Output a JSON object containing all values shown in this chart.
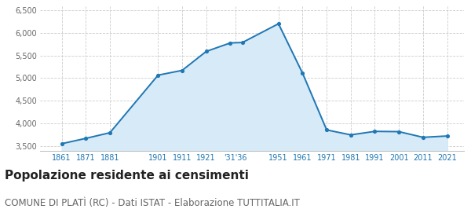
{
  "years": [
    1861,
    1871,
    1881,
    1901,
    1911,
    1921,
    1931,
    1936,
    1951,
    1961,
    1971,
    1981,
    1991,
    2001,
    2011,
    2021
  ],
  "population": [
    3554,
    3672,
    3796,
    5065,
    5170,
    5588,
    5775,
    5784,
    6198,
    5107,
    3858,
    3749,
    3826,
    3820,
    3695,
    3724
  ],
  "line_color": "#1f77b4",
  "fill_color": "#d6eaf8",
  "marker_color": "#1f77b4",
  "grid_color": "#cccccc",
  "bg_color": "#ffffff",
  "ylim": [
    3400,
    6600
  ],
  "yticks": [
    3500,
    4000,
    4500,
    5000,
    5500,
    6000,
    6500
  ],
  "ytick_labels": [
    "3,500",
    "4,000",
    "4,500",
    "5,000",
    "5,500",
    "6,000",
    "6,500"
  ],
  "xlim": [
    1852,
    2028
  ],
  "title": "Popolazione residente ai censimenti",
  "subtitle": "COMUNE DI PLATÌ (RC) - Dati ISTAT - Elaborazione TUTTITALIA.IT",
  "title_fontsize": 11,
  "subtitle_fontsize": 8.5,
  "xtick_positions": [
    1861,
    1871,
    1881,
    1901,
    1911,
    1921,
    1933,
    1951,
    1961,
    1971,
    1981,
    1991,
    2001,
    2011,
    2021
  ],
  "xtick_labels": [
    "1861",
    "1871",
    "1881",
    "1901",
    "1911",
    "1921",
    "'31'36",
    "1951",
    "1961",
    "1971",
    "1981",
    "1991",
    "2001",
    "2011",
    "2021"
  ]
}
